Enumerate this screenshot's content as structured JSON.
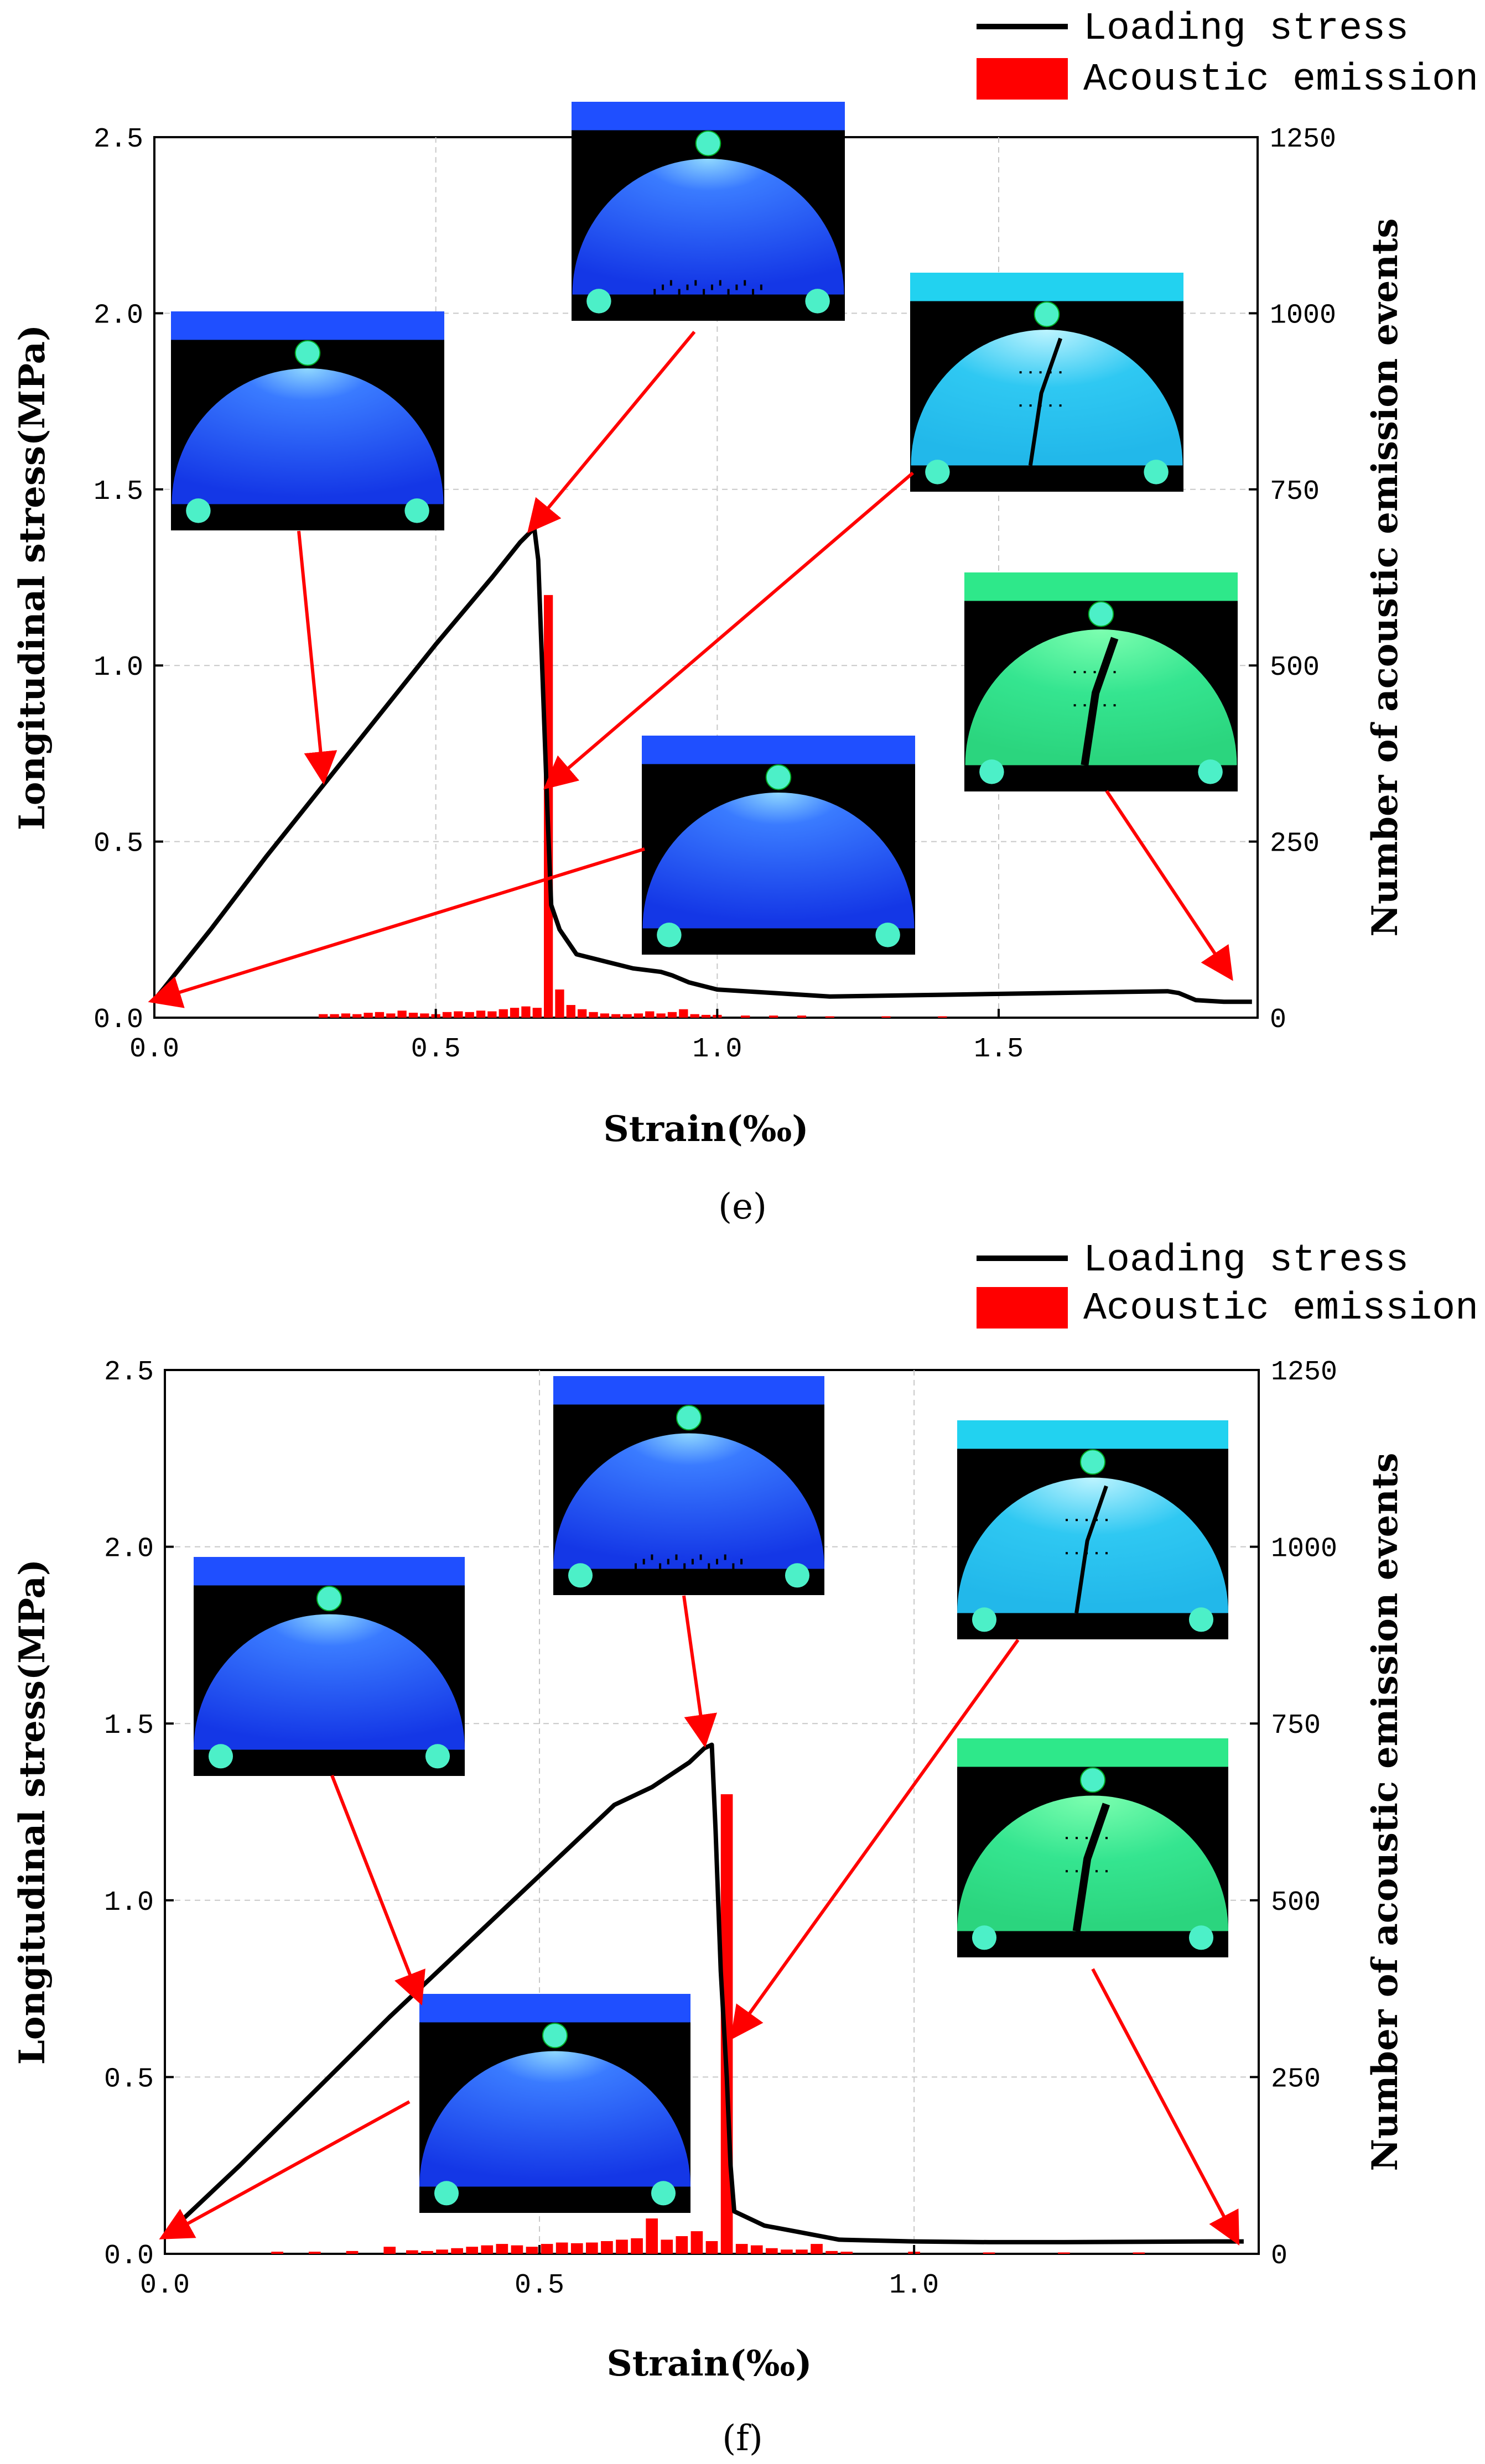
{
  "figure": {
    "colors": {
      "stress_line": "#000000",
      "acoustic_bar": "#ff0000",
      "arrow": "#ff0000",
      "grid": "#c8c8c8",
      "inset_blue": "#1f4fff",
      "inset_cyan": "#22d2f0",
      "inset_green": "#2ee88a"
    }
  },
  "chart_data": [
    {
      "panel_label": "(e)",
      "type": "bar+line",
      "xlabel": "Strain(‰)",
      "ylabel_left": "Longitudinal stress(MPa)",
      "ylabel_right": "Number of acoustic emission events",
      "xlim": [
        0.0,
        1.96
      ],
      "ylim_left": [
        0.0,
        2.5
      ],
      "ylim_right": [
        0,
        1250
      ],
      "x_ticks": [
        "0.0",
        "0.5",
        "1.0",
        "1.5"
      ],
      "y_left_ticks": [
        "0.0",
        "0.5",
        "1.0",
        "1.5",
        "2.0",
        "2.5"
      ],
      "y_right_ticks": [
        "0",
        "250",
        "500",
        "750",
        "1000",
        "1250"
      ],
      "grid": true,
      "legend": {
        "position": "top-right",
        "entries": [
          {
            "label": "Loading stress",
            "kind": "line"
          },
          {
            "label": "Acoustic emission",
            "kind": "bar"
          }
        ]
      },
      "series": [
        {
          "name": "Loading stress",
          "type": "line",
          "axis": "left",
          "points": [
            [
              0.0,
              0.05
            ],
            [
              0.1,
              0.25
            ],
            [
              0.2,
              0.46
            ],
            [
              0.3,
              0.66
            ],
            [
              0.4,
              0.86
            ],
            [
              0.5,
              1.06
            ],
            [
              0.6,
              1.25
            ],
            [
              0.65,
              1.35
            ],
            [
              0.675,
              1.39
            ],
            [
              0.682,
              1.3
            ],
            [
              0.69,
              0.95
            ],
            [
              0.698,
              0.6
            ],
            [
              0.705,
              0.32
            ],
            [
              0.72,
              0.25
            ],
            [
              0.75,
              0.18
            ],
            [
              0.8,
              0.16
            ],
            [
              0.85,
              0.14
            ],
            [
              0.9,
              0.13
            ],
            [
              0.92,
              0.12
            ],
            [
              0.95,
              0.1
            ],
            [
              1.0,
              0.08
            ],
            [
              1.1,
              0.07
            ],
            [
              1.2,
              0.06
            ],
            [
              1.4,
              0.065
            ],
            [
              1.6,
              0.07
            ],
            [
              1.8,
              0.075
            ],
            [
              1.82,
              0.07
            ],
            [
              1.85,
              0.05
            ],
            [
              1.9,
              0.045
            ],
            [
              1.95,
              0.045
            ]
          ]
        },
        {
          "name": "Acoustic emission",
          "type": "bar",
          "axis": "right",
          "bar_width": 0.016,
          "points": [
            [
              0.3,
              5
            ],
            [
              0.32,
              5
            ],
            [
              0.34,
              6
            ],
            [
              0.36,
              5
            ],
            [
              0.38,
              7
            ],
            [
              0.4,
              8
            ],
            [
              0.42,
              6
            ],
            [
              0.44,
              10
            ],
            [
              0.46,
              7
            ],
            [
              0.48,
              6
            ],
            [
              0.5,
              5
            ],
            [
              0.52,
              8
            ],
            [
              0.54,
              9
            ],
            [
              0.56,
              8
            ],
            [
              0.58,
              10
            ],
            [
              0.6,
              9
            ],
            [
              0.62,
              12
            ],
            [
              0.64,
              14
            ],
            [
              0.66,
              16
            ],
            [
              0.68,
              14
            ],
            [
              0.7,
              600
            ],
            [
              0.72,
              40
            ],
            [
              0.74,
              18
            ],
            [
              0.76,
              12
            ],
            [
              0.78,
              8
            ],
            [
              0.8,
              6
            ],
            [
              0.82,
              5
            ],
            [
              0.84,
              5
            ],
            [
              0.86,
              6
            ],
            [
              0.88,
              9
            ],
            [
              0.9,
              6
            ],
            [
              0.92,
              8
            ],
            [
              0.94,
              12
            ],
            [
              0.96,
              5
            ],
            [
              0.98,
              4
            ],
            [
              1.0,
              4
            ],
            [
              1.05,
              3
            ],
            [
              1.1,
              3
            ],
            [
              1.15,
              3
            ],
            [
              1.2,
              2
            ],
            [
              1.3,
              2
            ],
            [
              1.4,
              2
            ]
          ]
        }
      ],
      "insets": [
        {
          "name": "inset-e-stage-1",
          "state": "intact",
          "color": "blue",
          "plate": "blue",
          "cracks": 0,
          "arrow_to": [
            0.3,
            0.68
          ]
        },
        {
          "name": "inset-e-stage-2",
          "state": "microcracks",
          "color": "blue",
          "plate": "blue",
          "cracks": 1,
          "arrow_to": [
            0.67,
            1.39
          ]
        },
        {
          "name": "inset-e-stage-3",
          "state": "macro-crack",
          "color": "cyan",
          "plate": "cyan",
          "cracks": 2,
          "arrow_to": [
            0.7,
            0.66
          ]
        },
        {
          "name": "inset-e-stage-4",
          "state": "fractured",
          "color": "green",
          "plate": "green",
          "cracks": 3,
          "arrow_to": [
            1.91,
            0.12
          ]
        },
        {
          "name": "inset-e-stage-0",
          "state": "initial",
          "color": "blue",
          "plate": "blue",
          "cracks": 0,
          "arrow_to": [
            0.0,
            0.05
          ]
        }
      ]
    },
    {
      "panel_label": "(f)",
      "type": "bar+line",
      "xlabel": "Strain(‰)",
      "ylabel_left": "Longitudinal stress(MPa)",
      "ylabel_right": "Number of acoustic emission events",
      "xlim": [
        0.0,
        1.46
      ],
      "ylim_left": [
        0.0,
        2.5
      ],
      "ylim_right": [
        0,
        1250
      ],
      "x_ticks": [
        "0.0",
        "0.5",
        "1.0"
      ],
      "y_left_ticks": [
        "0.0",
        "0.5",
        "1.0",
        "1.5",
        "2.0",
        "2.5"
      ],
      "y_right_ticks": [
        "0",
        "250",
        "500",
        "750",
        "1000",
        "1250"
      ],
      "grid": true,
      "legend": {
        "position": "top-right",
        "entries": [
          {
            "label": "Loading stress",
            "kind": "line"
          },
          {
            "label": "Acoustic emission",
            "kind": "bar"
          }
        ]
      },
      "series": [
        {
          "name": "Loading stress",
          "type": "line",
          "axis": "left",
          "points": [
            [
              0.0,
              0.05
            ],
            [
              0.1,
              0.25
            ],
            [
              0.2,
              0.46
            ],
            [
              0.3,
              0.67
            ],
            [
              0.4,
              0.87
            ],
            [
              0.5,
              1.07
            ],
            [
              0.6,
              1.27
            ],
            [
              0.65,
              1.32
            ],
            [
              0.7,
              1.39
            ],
            [
              0.72,
              1.43
            ],
            [
              0.73,
              1.44
            ],
            [
              0.735,
              1.2
            ],
            [
              0.742,
              0.8
            ],
            [
              0.75,
              0.5
            ],
            [
              0.755,
              0.25
            ],
            [
              0.76,
              0.12
            ],
            [
              0.8,
              0.08
            ],
            [
              0.85,
              0.06
            ],
            [
              0.9,
              0.04
            ],
            [
              1.0,
              0.035
            ],
            [
              1.1,
              0.033
            ],
            [
              1.2,
              0.033
            ],
            [
              1.3,
              0.034
            ],
            [
              1.4,
              0.035
            ],
            [
              1.44,
              0.035
            ]
          ]
        },
        {
          "name": "Acoustic emission",
          "type": "bar",
          "axis": "right",
          "bar_width": 0.016,
          "points": [
            [
              0.15,
              3
            ],
            [
              0.2,
              3
            ],
            [
              0.25,
              4
            ],
            [
              0.3,
              10
            ],
            [
              0.33,
              5
            ],
            [
              0.35,
              4
            ],
            [
              0.37,
              6
            ],
            [
              0.39,
              8
            ],
            [
              0.41,
              10
            ],
            [
              0.43,
              12
            ],
            [
              0.45,
              14
            ],
            [
              0.47,
              12
            ],
            [
              0.49,
              10
            ],
            [
              0.51,
              14
            ],
            [
              0.53,
              16
            ],
            [
              0.55,
              15
            ],
            [
              0.57,
              16
            ],
            [
              0.59,
              18
            ],
            [
              0.61,
              20
            ],
            [
              0.63,
              22
            ],
            [
              0.65,
              50
            ],
            [
              0.67,
              20
            ],
            [
              0.69,
              25
            ],
            [
              0.71,
              32
            ],
            [
              0.73,
              18
            ],
            [
              0.75,
              650
            ],
            [
              0.77,
              14
            ],
            [
              0.79,
              12
            ],
            [
              0.81,
              8
            ],
            [
              0.83,
              6
            ],
            [
              0.85,
              6
            ],
            [
              0.87,
              14
            ],
            [
              0.89,
              4
            ],
            [
              0.91,
              3
            ],
            [
              1.0,
              3
            ],
            [
              1.1,
              2
            ],
            [
              1.2,
              2
            ],
            [
              1.3,
              2
            ]
          ]
        }
      ],
      "insets": [
        {
          "name": "inset-f-stage-1",
          "state": "intact",
          "color": "blue",
          "plate": "blue",
          "cracks": 0,
          "arrow_to": [
            0.34,
            0.72
          ]
        },
        {
          "name": "inset-f-stage-2",
          "state": "microcracks",
          "color": "blue",
          "plate": "blue",
          "cracks": 1,
          "arrow_to": [
            0.72,
            1.45
          ]
        },
        {
          "name": "inset-f-stage-3",
          "state": "macro-crack",
          "color": "cyan",
          "plate": "cyan",
          "cracks": 2,
          "arrow_to": [
            0.76,
            0.62
          ]
        },
        {
          "name": "inset-f-stage-4",
          "state": "fractured",
          "color": "green",
          "plate": "green",
          "cracks": 3,
          "arrow_to": [
            1.43,
            0.04
          ]
        },
        {
          "name": "inset-f-stage-0",
          "state": "initial",
          "color": "blue",
          "plate": "blue",
          "cracks": 0,
          "arrow_to": [
            0.0,
            0.05
          ]
        }
      ]
    }
  ]
}
